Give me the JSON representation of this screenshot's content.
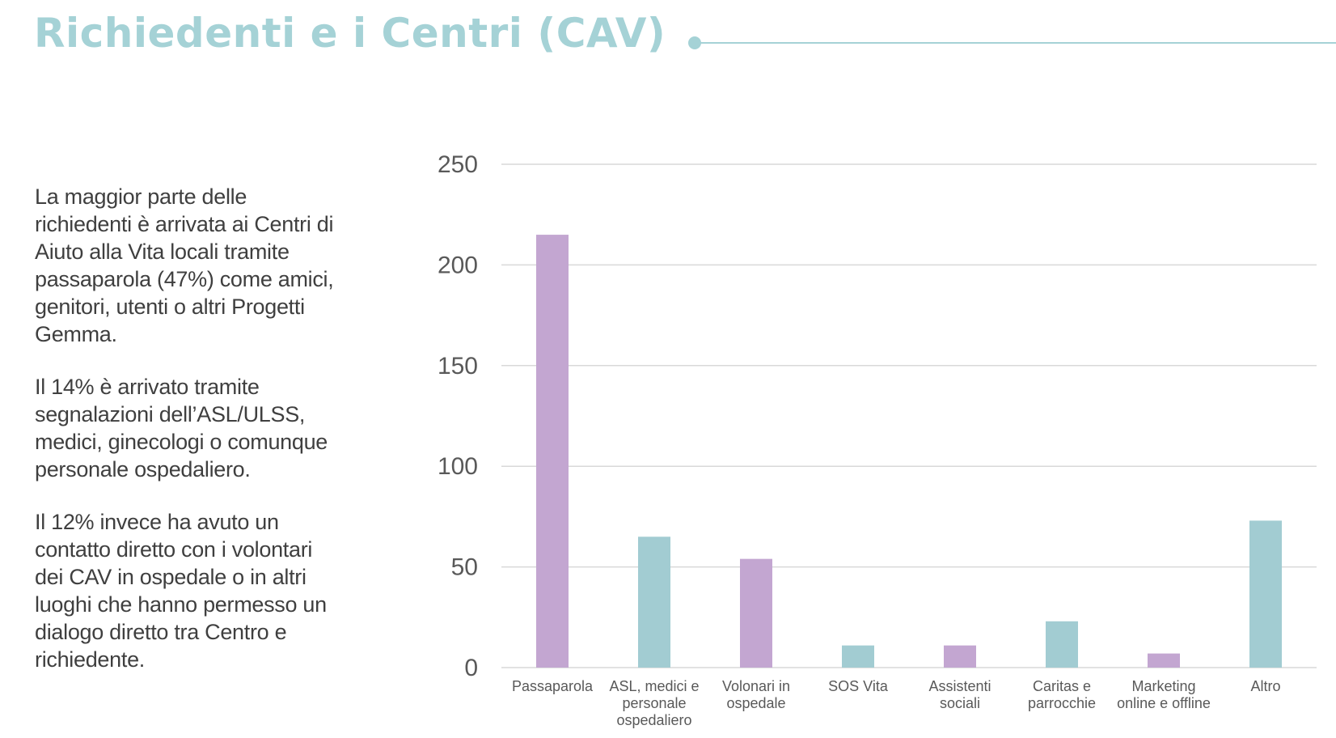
{
  "header": {
    "title": "Richiedenti e i Centri (CAV)"
  },
  "text": {
    "paragraphs": [
      "La maggior parte delle richiedenti è arrivata ai Centri di Aiuto alla Vita locali tramite passaparola (47%) come amici, genitori, utenti o altri Progetti Gemma.",
      "Il 14% è arrivato tramite segnalazioni dell’ASL/ULSS, medici, ginecologi o comunque personale ospedaliero.",
      "Il 12% invece ha avuto un contatto diretto con i volontari dei CAV in ospedale o in altri luoghi che hanno permesso un dialogo diretto tra Centro e richiedente."
    ]
  },
  "colors": {
    "accent": "#a5d2d6",
    "purple": "#c3a6d1",
    "teal": "#a2ccd2",
    "grid": "#d9d9d9",
    "text": "#3f3f3f"
  },
  "chart_data": {
    "type": "bar",
    "categories": [
      [
        "Passaparola"
      ],
      [
        "ASL, medici e",
        "personale",
        "ospedaliero"
      ],
      [
        "Volonari in",
        "ospedale"
      ],
      [
        "SOS Vita"
      ],
      [
        "Assistenti",
        "sociali"
      ],
      [
        "Caritas e",
        "parrocchie"
      ],
      [
        "Marketing",
        "online e offline"
      ],
      [
        "Altro"
      ]
    ],
    "values": [
      215,
      65,
      54,
      11,
      11,
      23,
      7,
      73
    ],
    "bar_colors": [
      "#c3a6d1",
      "#a2ccd2",
      "#c3a6d1",
      "#a2ccd2",
      "#c3a6d1",
      "#a2ccd2",
      "#c3a6d1",
      "#a2ccd2"
    ],
    "ylim": [
      0,
      250
    ],
    "yticks": [
      0,
      50,
      100,
      150,
      200,
      250
    ],
    "grid": true,
    "legend": "none"
  }
}
